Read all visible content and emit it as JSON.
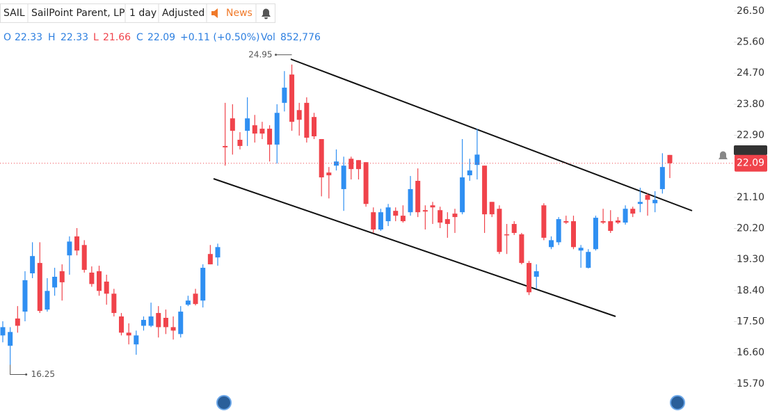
{
  "header": {
    "symbol": "SAIL",
    "name": "SailPoint Parent, LP",
    "interval": "1 day",
    "adjustment": "Adjusted",
    "news": "News"
  },
  "chart_data": {
    "type": "candlestick",
    "open": [
      17.1,
      16.8,
      17.59,
      17.79,
      18.9,
      19.2,
      17.85,
      18.49,
      18.96,
      19.42,
      19.97,
      19.72,
      18.92,
      18.96,
      18.66,
      18.31,
      17.65,
      17.18,
      16.84,
      17.38,
      17.38,
      17.75,
      17.61,
      17.34,
      17.14,
      17.99,
      18.31,
      18.11,
      19.46,
      19.36,
      22.59,
      23.39,
      22.77,
      23.03,
      23.19,
      23.09,
      23.09,
      22.63,
      23.84,
      24.66,
      23.63,
      23.84,
      23.43,
      22.79,
      21.82,
      22.02,
      21.34,
      22.22,
      22.18,
      22.12,
      20.67,
      20.17,
      20.41,
      20.71,
      20.57,
      20.67,
      21.58,
      20.73,
      20.87,
      20.73,
      20.47,
      20.63,
      20.67,
      21.74,
      22.04,
      22.02,
      20.97,
      20.77,
      20.03,
      20.33,
      20.03,
      19.2,
      18.8,
      20.87,
      19.66,
      19.8,
      20.41,
      20.41,
      19.56,
      19.06,
      19.6,
      20.41,
      20.41,
      20.43,
      20.37,
      20.77,
      20.91,
      21.17,
      20.93,
      21.34,
      22.33
    ],
    "high": [
      17.51,
      17.34,
      17.95,
      18.96,
      19.8,
      19.8,
      18.76,
      19.06,
      19.16,
      19.97,
      20.21,
      19.86,
      19.1,
      19.12,
      18.86,
      18.45,
      17.75,
      17.45,
      17.24,
      17.65,
      18.05,
      17.95,
      17.85,
      17.65,
      17.95,
      18.25,
      18.45,
      19.16,
      19.72,
      19.76,
      23.84,
      23.8,
      22.99,
      24.0,
      23.49,
      23.29,
      23.19,
      23.8,
      24.76,
      24.95,
      23.84,
      24.0,
      23.55,
      22.79,
      21.98,
      22.49,
      22.28,
      22.28,
      22.18,
      22.12,
      20.81,
      20.77,
      20.91,
      20.81,
      20.87,
      21.72,
      21.94,
      20.87,
      20.97,
      20.83,
      20.67,
      20.77,
      22.79,
      22.22,
      23.09,
      22.02,
      20.97,
      20.87,
      20.33,
      20.41,
      20.07,
      19.26,
      19.16,
      20.93,
      19.97,
      20.53,
      20.57,
      20.57,
      19.72,
      19.6,
      20.57,
      20.77,
      20.73,
      20.53,
      20.87,
      20.83,
      21.38,
      21.21,
      21.28,
      22.38,
      22.33
    ],
    "low": [
      16.9,
      16.25,
      17.18,
      17.51,
      18.76,
      17.75,
      17.79,
      18.25,
      18.11,
      18.86,
      19.42,
      18.92,
      18.51,
      18.25,
      17.99,
      17.65,
      17.1,
      16.84,
      16.54,
      17.24,
      17.34,
      17.04,
      17.14,
      16.98,
      17.04,
      17.95,
      17.97,
      17.91,
      19.16,
      19.12,
      22.02,
      22.34,
      22.49,
      22.59,
      22.69,
      22.79,
      22.14,
      22.08,
      23.59,
      23.03,
      22.89,
      22.69,
      22.79,
      21.13,
      21.07,
      21.88,
      20.71,
      21.62,
      21.62,
      20.83,
      20.07,
      20.13,
      20.27,
      20.41,
      20.37,
      20.57,
      20.53,
      20.17,
      20.33,
      20.21,
      19.93,
      20.07,
      20.61,
      21.58,
      21.62,
      20.07,
      20.53,
      19.46,
      19.46,
      20.01,
      19.16,
      18.27,
      18.45,
      19.86,
      19.6,
      19.72,
      20.33,
      19.6,
      19.06,
      19.04,
      19.56,
      20.33,
      20.07,
      20.33,
      20.31,
      20.53,
      20.67,
      20.57,
      20.67,
      21.21,
      21.66
    ],
    "close": [
      17.34,
      17.2,
      17.38,
      18.7,
      19.4,
      17.81,
      18.39,
      18.8,
      18.64,
      19.82,
      19.56,
      19.0,
      18.59,
      18.39,
      18.31,
      17.75,
      17.18,
      17.1,
      17.1,
      17.55,
      17.65,
      17.34,
      17.34,
      17.24,
      17.79,
      18.11,
      18.01,
      19.06,
      19.16,
      19.66,
      22.55,
      23.03,
      22.59,
      23.39,
      22.95,
      22.95,
      22.63,
      23.55,
      24.28,
      23.29,
      23.35,
      22.83,
      22.87,
      21.68,
      21.74,
      22.14,
      22.02,
      21.92,
      21.92,
      20.91,
      20.17,
      20.67,
      20.81,
      20.57,
      20.41,
      21.34,
      20.67,
      20.69,
      20.81,
      20.37,
      20.33,
      20.53,
      21.68,
      21.88,
      22.34,
      20.61,
      20.61,
      19.52,
      20.01,
      20.07,
      19.2,
      18.35,
      18.96,
      19.93,
      19.86,
      20.47,
      20.37,
      19.66,
      19.64,
      19.52,
      20.51,
      20.37,
      20.13,
      20.37,
      20.77,
      20.63,
      20.97,
      21.03,
      21.03,
      21.98,
      22.09
    ],
    "up_color": "#2f8ff2",
    "down_color": "#f0434b",
    "ylim": [
      14.91,
      26.82
    ],
    "yticks": [
      {
        "value": 26.5,
        "label": "26.50"
      },
      {
        "value": 25.6,
        "label": "25.60"
      },
      {
        "value": 24.7,
        "label": "24.70"
      },
      {
        "value": 23.8,
        "label": "23.80"
      },
      {
        "value": 22.9,
        "label": "22.90"
      },
      {
        "value": 21.1,
        "label": "21.10"
      },
      {
        "value": 20.2,
        "label": "20.20"
      },
      {
        "value": 19.3,
        "label": "19.30"
      },
      {
        "value": 18.4,
        "label": "18.40"
      },
      {
        "value": 17.5,
        "label": "17.50"
      },
      {
        "value": 16.6,
        "label": "16.60"
      },
      {
        "value": 15.7,
        "label": "15.70"
      }
    ],
    "legend": {
      "open_label": "O",
      "high_label": "H",
      "low_label": "L",
      "close_label": "C",
      "change": "+0.11 (+0.50%)",
      "volume_label": "Vol",
      "volume": "852,776"
    }
  }
}
